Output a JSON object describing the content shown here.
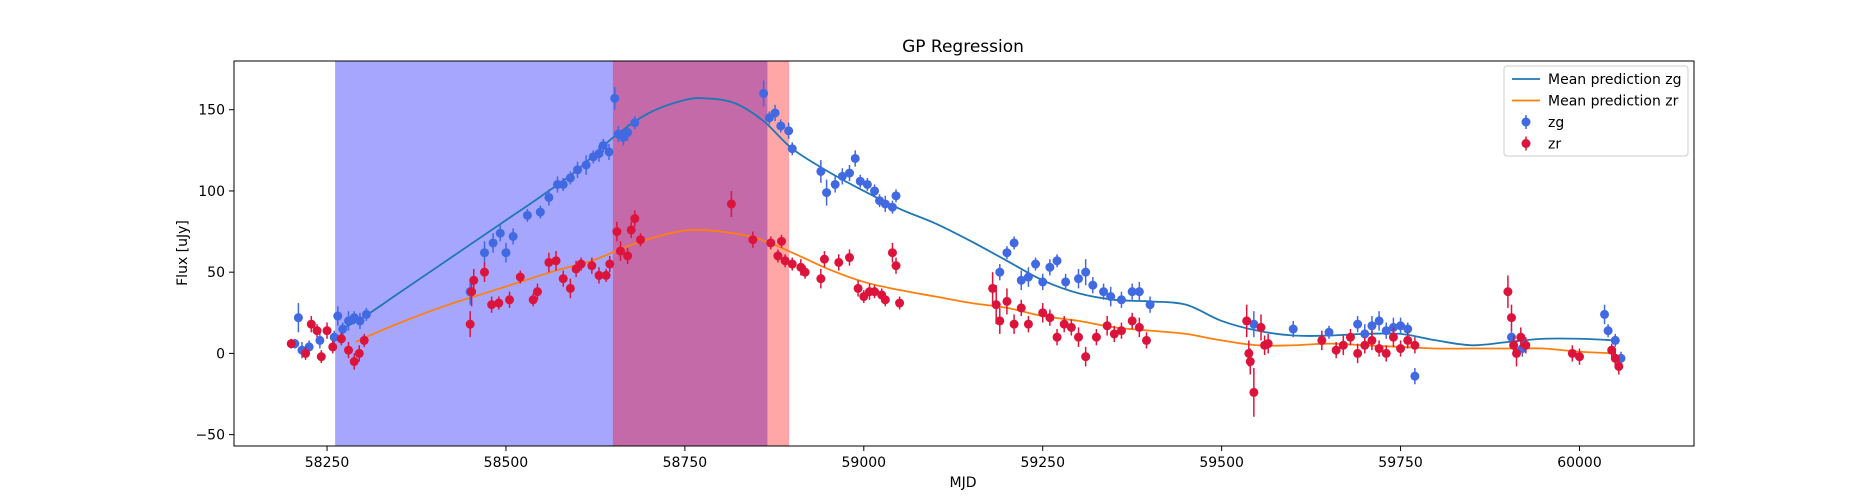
{
  "chart_data": {
    "type": "scatter",
    "title": "GP Regression",
    "xlabel": "MJD",
    "ylabel": "Flux [uJy]",
    "xlim": [
      58120,
      60160
    ],
    "ylim": [
      -57,
      180
    ],
    "xticks": [
      58250,
      58500,
      58750,
      59000,
      59250,
      59500,
      59750,
      60000
    ],
    "yticks": [
      -50,
      0,
      50,
      100,
      150
    ],
    "grid": false,
    "legend_position": "top-right",
    "shaded_regions": [
      {
        "x_start": 58262,
        "x_end": 58650,
        "color": "#a6a6ff"
      },
      {
        "x_start": 58650,
        "x_end": 58866,
        "color": "#c46aa8"
      },
      {
        "x_start": 58866,
        "x_end": 58895,
        "color": "#ffa6a6"
      }
    ],
    "lines": [
      {
        "name": "Mean prediction zg",
        "color": "#1f77b4",
        "x": [
          58270,
          58300,
          58350,
          58400,
          58450,
          58500,
          58550,
          58600,
          58650,
          58700,
          58750,
          58780,
          58820,
          58860,
          58900,
          58950,
          59000,
          59050,
          59100,
          59150,
          59200,
          59250,
          59300,
          59350,
          59400,
          59450,
          59500,
          59550,
          59600,
          59650,
          59700,
          59750,
          59800,
          59850,
          59900,
          59950,
          60000,
          60050
        ],
        "y": [
          15,
          22,
          37,
          52,
          67,
          82,
          97,
          113,
          133,
          148,
          156,
          157,
          154,
          143,
          126,
          112,
          100,
          89,
          80,
          69,
          57,
          45,
          37,
          33,
          32,
          30,
          20,
          14,
          11,
          11,
          12,
          12,
          8,
          5,
          7,
          9,
          9,
          8
        ]
      },
      {
        "name": "Mean prediction zr",
        "color": "#ff7f0e",
        "x": [
          58290,
          58320,
          58370,
          58420,
          58470,
          58520,
          58570,
          58620,
          58670,
          58720,
          58760,
          58800,
          58850,
          58900,
          58950,
          59000,
          59050,
          59100,
          59150,
          59200,
          59250,
          59300,
          59350,
          59400,
          59450,
          59500,
          59550,
          59600,
          59650,
          59700,
          59750,
          59800,
          59850,
          59900,
          59950,
          60000,
          60050
        ],
        "y": [
          7,
          13,
          22,
          30,
          37,
          44,
          51,
          57,
          66,
          73,
          76,
          75,
          71,
          62,
          52,
          44,
          39,
          35,
          31,
          28,
          23,
          20,
          16,
          14,
          12,
          8,
          5,
          5,
          6,
          5,
          4,
          3,
          3,
          3,
          3,
          1,
          0
        ]
      }
    ],
    "series": [
      {
        "name": "zg",
        "color": "#4169e1",
        "kind": "errorbar",
        "points": [
          [
            58205,
            6,
            3
          ],
          [
            58210,
            22,
            9
          ],
          [
            58215,
            2,
            5
          ],
          [
            58225,
            4,
            4
          ],
          [
            58240,
            8,
            5
          ],
          [
            58260,
            10,
            4
          ],
          [
            58265,
            23,
            6
          ],
          [
            58272,
            15,
            4
          ],
          [
            58280,
            20,
            6
          ],
          [
            58288,
            22,
            4
          ],
          [
            58296,
            20,
            5
          ],
          [
            58305,
            24,
            4
          ],
          [
            58450,
            38,
            8
          ],
          [
            58470,
            62,
            7
          ],
          [
            58482,
            68,
            6
          ],
          [
            58492,
            74,
            5
          ],
          [
            58500,
            62,
            6
          ],
          [
            58510,
            72,
            5
          ],
          [
            58530,
            85,
            4
          ],
          [
            58548,
            87,
            4
          ],
          [
            58560,
            96,
            5
          ],
          [
            58572,
            104,
            5
          ],
          [
            58580,
            104,
            4
          ],
          [
            58590,
            108,
            4
          ],
          [
            58600,
            113,
            5
          ],
          [
            58612,
            116,
            6
          ],
          [
            58622,
            121,
            4
          ],
          [
            58630,
            123,
            5
          ],
          [
            58636,
            128,
            4
          ],
          [
            58644,
            124,
            5
          ],
          [
            58652,
            157,
            7
          ],
          [
            58657,
            135,
            5
          ],
          [
            58664,
            133,
            5
          ],
          [
            58670,
            136,
            5
          ],
          [
            58680,
            142,
            4
          ],
          [
            58860,
            160,
            8
          ],
          [
            58868,
            145,
            4
          ],
          [
            58876,
            148,
            5
          ],
          [
            58884,
            140,
            4
          ],
          [
            58895,
            137,
            5
          ],
          [
            58900,
            126,
            4
          ],
          [
            58940,
            112,
            7
          ],
          [
            58948,
            99,
            8
          ],
          [
            58960,
            104,
            5
          ],
          [
            58970,
            109,
            5
          ],
          [
            58980,
            111,
            5
          ],
          [
            58988,
            120,
            5
          ],
          [
            58995,
            106,
            4
          ],
          [
            59005,
            104,
            4
          ],
          [
            59015,
            100,
            4
          ],
          [
            59022,
            94,
            4
          ],
          [
            59030,
            92,
            5
          ],
          [
            59040,
            90,
            4
          ],
          [
            59045,
            97,
            4
          ],
          [
            59190,
            50,
            5
          ],
          [
            59200,
            62,
            4
          ],
          [
            59210,
            68,
            4
          ],
          [
            59220,
            45,
            6
          ],
          [
            59230,
            47,
            6
          ],
          [
            59240,
            55,
            4
          ],
          [
            59250,
            44,
            5
          ],
          [
            59260,
            53,
            5
          ],
          [
            59270,
            57,
            4
          ],
          [
            59282,
            44,
            5
          ],
          [
            59300,
            46,
            6
          ],
          [
            59310,
            50,
            8
          ],
          [
            59320,
            42,
            5
          ],
          [
            59335,
            38,
            5
          ],
          [
            59345,
            35,
            6
          ],
          [
            59360,
            33,
            5
          ],
          [
            59375,
            38,
            5
          ],
          [
            59385,
            38,
            6
          ],
          [
            59400,
            30,
            5
          ],
          [
            59545,
            18,
            8
          ],
          [
            59600,
            15,
            5
          ],
          [
            59650,
            13,
            4
          ],
          [
            59690,
            18,
            5
          ],
          [
            59700,
            12,
            6
          ],
          [
            59710,
            17,
            6
          ],
          [
            59720,
            20,
            6
          ],
          [
            59730,
            14,
            5
          ],
          [
            59740,
            16,
            6
          ],
          [
            59750,
            17,
            5
          ],
          [
            59760,
            15,
            4
          ],
          [
            59770,
            -14,
            5
          ],
          [
            59905,
            10,
            5
          ],
          [
            59920,
            3,
            5
          ],
          [
            60035,
            24,
            6
          ],
          [
            60040,
            14,
            4
          ],
          [
            60050,
            8,
            4
          ],
          [
            60058,
            -3,
            4
          ]
        ]
      },
      {
        "name": "zr",
        "color": "#dc143c",
        "kind": "errorbar",
        "points": [
          [
            58200,
            6,
            3
          ],
          [
            58220,
            0,
            4
          ],
          [
            58228,
            18,
            5
          ],
          [
            58236,
            14,
            4
          ],
          [
            58242,
            -2,
            4
          ],
          [
            58250,
            14,
            5
          ],
          [
            58258,
            4,
            4
          ],
          [
            58270,
            9,
            4
          ],
          [
            58280,
            2,
            5
          ],
          [
            58288,
            -5,
            5
          ],
          [
            58295,
            0,
            5
          ],
          [
            58302,
            8,
            4
          ],
          [
            58450,
            18,
            8
          ],
          [
            58452,
            38,
            9
          ],
          [
            58455,
            45,
            7
          ],
          [
            58470,
            50,
            6
          ],
          [
            58480,
            30,
            5
          ],
          [
            58490,
            31,
            4
          ],
          [
            58505,
            33,
            5
          ],
          [
            58520,
            47,
            4
          ],
          [
            58538,
            33,
            4
          ],
          [
            58544,
            38,
            5
          ],
          [
            58560,
            56,
            6
          ],
          [
            58570,
            57,
            6
          ],
          [
            58580,
            46,
            5
          ],
          [
            58590,
            40,
            6
          ],
          [
            58598,
            52,
            5
          ],
          [
            58605,
            55,
            4
          ],
          [
            58620,
            54,
            5
          ],
          [
            58630,
            48,
            5
          ],
          [
            58640,
            48,
            4
          ],
          [
            58645,
            55,
            5
          ],
          [
            58655,
            75,
            6
          ],
          [
            58660,
            63,
            6
          ],
          [
            58670,
            60,
            5
          ],
          [
            58675,
            76,
            5
          ],
          [
            58680,
            83,
            5
          ],
          [
            58688,
            70,
            4
          ],
          [
            58815,
            92,
            8
          ],
          [
            58845,
            70,
            5
          ],
          [
            58870,
            68,
            4
          ],
          [
            58880,
            60,
            4
          ],
          [
            58885,
            69,
            4
          ],
          [
            58890,
            57,
            4
          ],
          [
            58900,
            55,
            4
          ],
          [
            58912,
            53,
            5
          ],
          [
            58918,
            50,
            4
          ],
          [
            58940,
            46,
            6
          ],
          [
            58945,
            58,
            5
          ],
          [
            58965,
            56,
            5
          ],
          [
            58980,
            59,
            5
          ],
          [
            58992,
            40,
            5
          ],
          [
            59000,
            35,
            4
          ],
          [
            59008,
            38,
            5
          ],
          [
            59015,
            38,
            4
          ],
          [
            59025,
            36,
            4
          ],
          [
            59030,
            33,
            4
          ],
          [
            59040,
            62,
            6
          ],
          [
            59045,
            54,
            5
          ],
          [
            59050,
            31,
            4
          ],
          [
            59180,
            40,
            10
          ],
          [
            59185,
            30,
            12
          ],
          [
            59190,
            20,
            8
          ],
          [
            59200,
            32,
            8
          ],
          [
            59210,
            18,
            6
          ],
          [
            59220,
            28,
            5
          ],
          [
            59230,
            18,
            5
          ],
          [
            59250,
            25,
            6
          ],
          [
            59260,
            22,
            5
          ],
          [
            59270,
            10,
            5
          ],
          [
            59280,
            18,
            5
          ],
          [
            59290,
            16,
            5
          ],
          [
            59300,
            10,
            6
          ],
          [
            59310,
            -2,
            6
          ],
          [
            59325,
            10,
            5
          ],
          [
            59340,
            17,
            6
          ],
          [
            59350,
            12,
            5
          ],
          [
            59360,
            14,
            5
          ],
          [
            59375,
            20,
            5
          ],
          [
            59385,
            16,
            6
          ],
          [
            59395,
            8,
            5
          ],
          [
            59535,
            20,
            10
          ],
          [
            59538,
            0,
            8
          ],
          [
            59540,
            -5,
            8
          ],
          [
            59545,
            -24,
            15
          ],
          [
            59555,
            16,
            8
          ],
          [
            59560,
            5,
            6
          ],
          [
            59565,
            6,
            6
          ],
          [
            59640,
            8,
            6
          ],
          [
            59660,
            2,
            5
          ],
          [
            59670,
            5,
            6
          ],
          [
            59680,
            10,
            5
          ],
          [
            59690,
            0,
            6
          ],
          [
            59700,
            5,
            5
          ],
          [
            59710,
            8,
            6
          ],
          [
            59720,
            3,
            5
          ],
          [
            59730,
            0,
            5
          ],
          [
            59740,
            10,
            6
          ],
          [
            59750,
            3,
            5
          ],
          [
            59760,
            8,
            5
          ],
          [
            59770,
            5,
            5
          ],
          [
            59900,
            38,
            10
          ],
          [
            59905,
            22,
            8
          ],
          [
            59908,
            5,
            6
          ],
          [
            59912,
            0,
            8
          ],
          [
            59918,
            10,
            6
          ],
          [
            59925,
            5,
            5
          ],
          [
            59990,
            0,
            5
          ],
          [
            60000,
            -2,
            5
          ],
          [
            60045,
            2,
            4
          ],
          [
            60050,
            -3,
            5
          ],
          [
            60055,
            -8,
            5
          ]
        ]
      }
    ],
    "legend": [
      {
        "label": "Mean prediction zg",
        "kind": "line",
        "color": "#1f77b4"
      },
      {
        "label": "Mean prediction zr",
        "kind": "line",
        "color": "#ff7f0e"
      },
      {
        "label": "zg",
        "kind": "errorbar",
        "color": "#4169e1"
      },
      {
        "label": "zr",
        "kind": "errorbar",
        "color": "#dc143c"
      }
    ]
  }
}
